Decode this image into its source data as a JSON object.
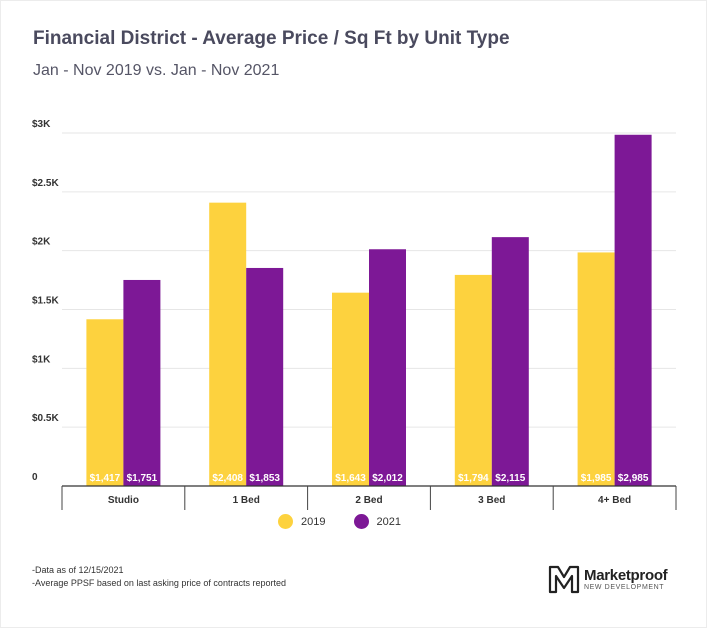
{
  "header": {
    "title": "Financial District - Average Price / Sq Ft by Unit Type",
    "subtitle": "Jan - Nov 2019 vs. Jan - Nov 2021"
  },
  "chart_data": {
    "type": "bar",
    "categories": [
      "Studio",
      "1 Bed",
      "2 Bed",
      "3 Bed",
      "4+ Bed"
    ],
    "series": [
      {
        "name": "2019",
        "color": "#fdd23e",
        "values": [
          1417,
          2408,
          1643,
          1794,
          1985
        ],
        "labels": [
          "$1,417",
          "$2,408",
          "$1,643",
          "$1,794",
          "$1,985"
        ]
      },
      {
        "name": "2021",
        "color": "#7d1896",
        "values": [
          1751,
          1853,
          2012,
          2115,
          2985
        ],
        "labels": [
          "$1,751",
          "$1,853",
          "$2,012",
          "$2,115",
          "$2,985"
        ]
      }
    ],
    "yticks": [
      0,
      500,
      1000,
      1500,
      2000,
      2500,
      3000
    ],
    "ytick_labels": [
      "0",
      "$0.5K",
      "$1K",
      "$1.5K",
      "$2K",
      "$2.5K",
      "$3K"
    ],
    "ylim": [
      0,
      3000
    ],
    "grid": true,
    "legend": "bottom-center"
  },
  "footnotes": {
    "line1": "-Data as of 12/15/2021",
    "line2": "-Average PPSF based on last asking price of contracts reported"
  },
  "logo": {
    "name": "Marketproof",
    "subtitle": "NEW DEVELOPMENT"
  }
}
